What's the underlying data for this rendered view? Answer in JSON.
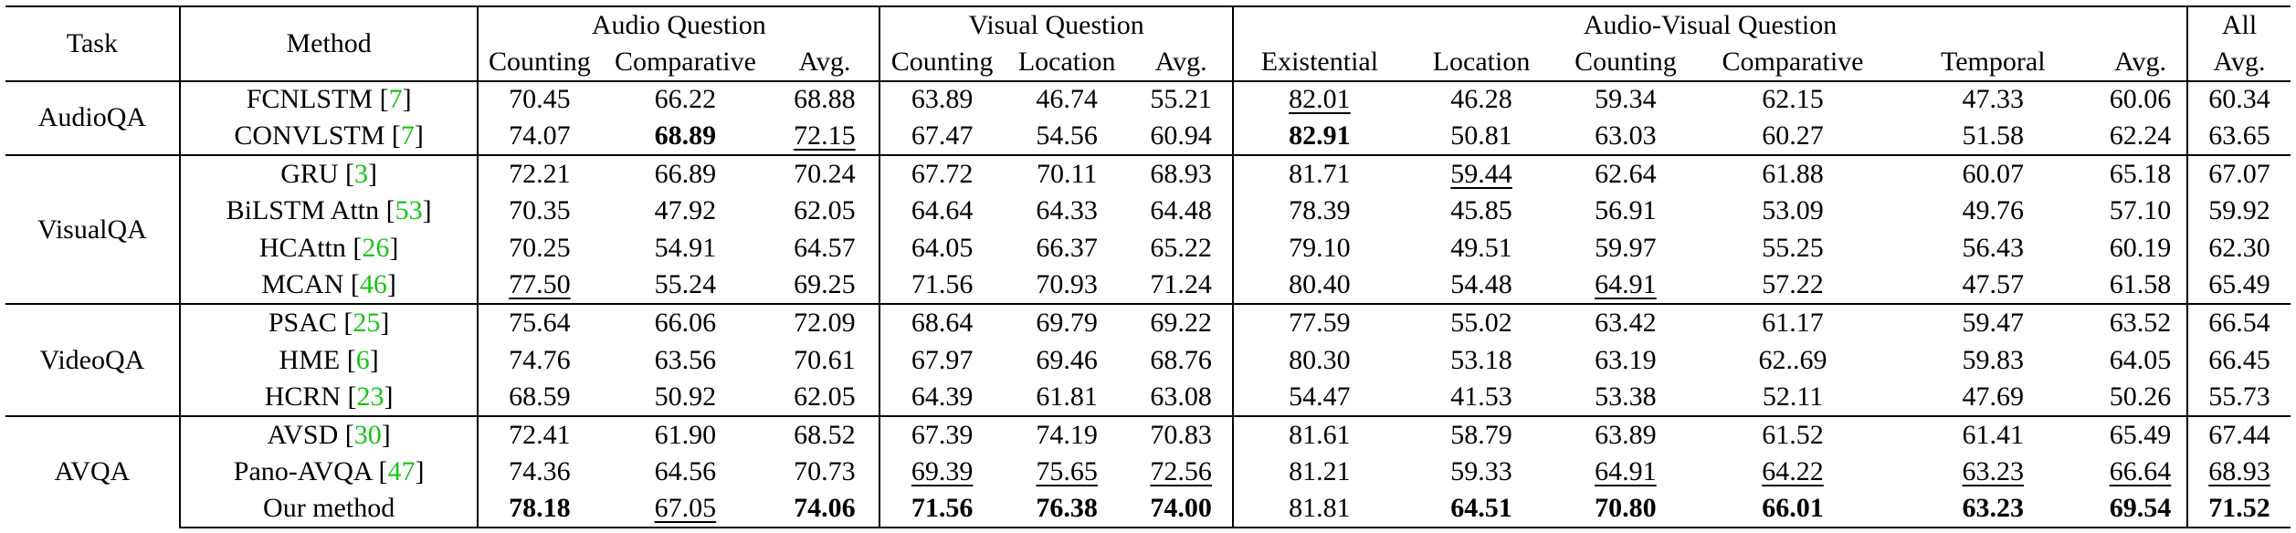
{
  "header": {
    "task": "Task",
    "method": "Method",
    "groups": [
      "Audio Question",
      "Visual Question",
      "Audio-Visual Question"
    ],
    "all_line1": "All",
    "all_line2": "Avg.",
    "subcols": [
      "Counting",
      "Comparative",
      "Avg.",
      "Counting",
      "Location",
      "Avg.",
      "Existential",
      "Location",
      "Counting",
      "Comparative",
      "Temporal",
      "Avg."
    ]
  },
  "tasks": [
    "AudioQA",
    "VisualQA",
    "VideoQA",
    "AVQA"
  ],
  "rows": [
    {
      "name": "FCNLSTM",
      "ref": "7",
      "vals": [
        "70.45",
        "66.22",
        "68.88",
        "63.89",
        "46.74",
        "55.21",
        "82.01",
        "46.28",
        "59.34",
        "62.15",
        "47.33",
        "60.06",
        "60.34"
      ],
      "bold": [],
      "under": [
        6
      ]
    },
    {
      "name": "CONVLSTM",
      "ref": "7",
      "vals": [
        "74.07",
        "68.89",
        "72.15",
        "67.47",
        "54.56",
        "60.94",
        "82.91",
        "50.81",
        "63.03",
        "60.27",
        "51.58",
        "62.24",
        "63.65"
      ],
      "bold": [
        1,
        6
      ],
      "under": [
        2
      ]
    },
    {
      "name": "GRU",
      "ref": "3",
      "vals": [
        "72.21",
        "66.89",
        "70.24",
        "67.72",
        "70.11",
        "68.93",
        "81.71",
        "59.44",
        "62.64",
        "61.88",
        "60.07",
        "65.18",
        "67.07"
      ],
      "bold": [],
      "under": [
        7
      ]
    },
    {
      "name": "BiLSTM Attn",
      "ref": "53",
      "vals": [
        "70.35",
        "47.92",
        "62.05",
        "64.64",
        "64.33",
        "64.48",
        "78.39",
        "45.85",
        "56.91",
        "53.09",
        "49.76",
        "57.10",
        "59.92"
      ],
      "bold": [],
      "under": []
    },
    {
      "name": "HCAttn",
      "ref": "26",
      "vals": [
        "70.25",
        "54.91",
        "64.57",
        "64.05",
        "66.37",
        "65.22",
        "79.10",
        "49.51",
        "59.97",
        "55.25",
        "56.43",
        "60.19",
        "62.30"
      ],
      "bold": [],
      "under": []
    },
    {
      "name": "MCAN",
      "ref": "46",
      "vals": [
        "77.50",
        "55.24",
        "69.25",
        "71.56",
        "70.93",
        "71.24",
        "80.40",
        "54.48",
        "64.91",
        "57.22",
        "47.57",
        "61.58",
        "65.49"
      ],
      "bold": [],
      "under": [
        0,
        8
      ]
    },
    {
      "name": "PSAC",
      "ref": "25",
      "vals": [
        "75.64",
        "66.06",
        "72.09",
        "68.64",
        "69.79",
        "69.22",
        "77.59",
        "55.02",
        "63.42",
        "61.17",
        "59.47",
        "63.52",
        "66.54"
      ],
      "bold": [],
      "under": []
    },
    {
      "name": "HME",
      "ref": "6",
      "vals": [
        "74.76",
        "63.56",
        "70.61",
        "67.97",
        "69.46",
        "68.76",
        "80.30",
        "53.18",
        "63.19",
        "62..69",
        "59.83",
        "64.05",
        "66.45"
      ],
      "bold": [],
      "under": []
    },
    {
      "name": "HCRN",
      "ref": "23",
      "vals": [
        "68.59",
        "50.92",
        "62.05",
        "64.39",
        "61.81",
        "63.08",
        "54.47",
        "41.53",
        "53.38",
        "52.11",
        "47.69",
        "50.26",
        "55.73"
      ],
      "bold": [],
      "under": []
    },
    {
      "name": "AVSD",
      "ref": "30",
      "vals": [
        "72.41",
        "61.90",
        "68.52",
        "67.39",
        "74.19",
        "70.83",
        "81.61",
        "58.79",
        "63.89",
        "61.52",
        "61.41",
        "65.49",
        "67.44"
      ],
      "bold": [],
      "under": []
    },
    {
      "name": "Pano-AVQA",
      "ref": "47",
      "vals": [
        "74.36",
        "64.56",
        "70.73",
        "69.39",
        "75.65",
        "72.56",
        "81.21",
        "59.33",
        "64.91",
        "64.22",
        "63.23",
        "66.64",
        "68.93"
      ],
      "bold": [],
      "under": [
        3,
        4,
        5,
        8,
        9,
        10,
        11,
        12
      ]
    },
    {
      "name": "Our method",
      "ref": "",
      "vals": [
        "78.18",
        "67.05",
        "74.06",
        "71.56",
        "76.38",
        "74.00",
        "81.81",
        "64.51",
        "70.80",
        "66.01",
        "63.23",
        "69.54",
        "71.52"
      ],
      "bold": [
        0,
        2,
        3,
        4,
        5,
        7,
        8,
        9,
        10,
        11,
        12
      ],
      "under": [
        1
      ]
    }
  ]
}
